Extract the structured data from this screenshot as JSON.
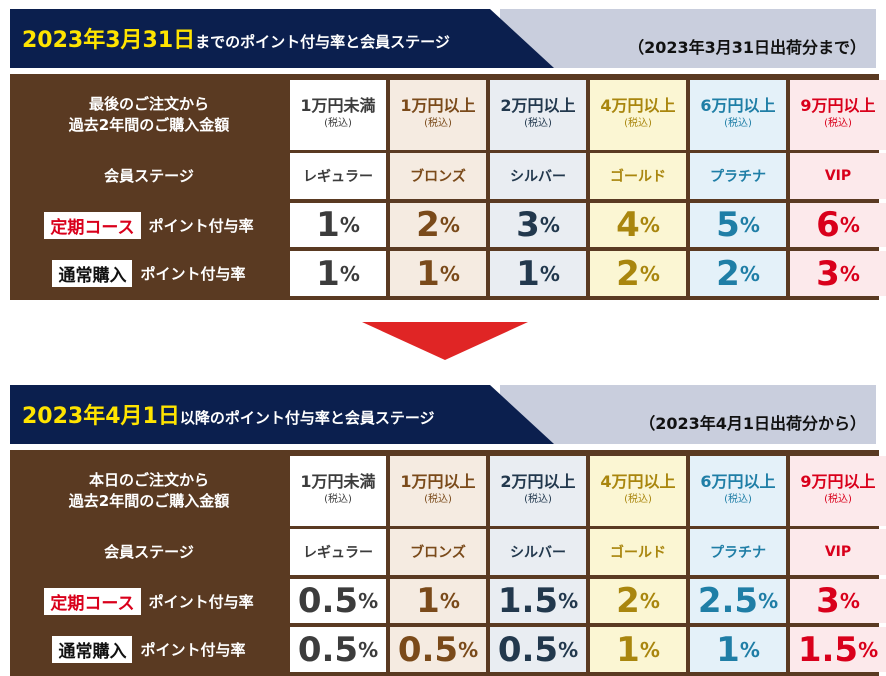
{
  "sections": [
    {
      "title_date": "2023年3月31日",
      "title_rest": "までのポイント付与率と会員ステージ",
      "note": "（2023年3月31日出荷分まで）",
      "amount_label_1": "最後のご注文から",
      "amount_label_2": "過去2年間のご購入金額",
      "stage_label": "会員ステージ",
      "rows": [
        {
          "tag": "定期コース",
          "label": "ポイント付与率",
          "values": [
            "1",
            "2",
            "3",
            "4",
            "5",
            "6"
          ]
        },
        {
          "tag": "通常購入",
          "label": "ポイント付与率",
          "values": [
            "1",
            "1",
            "1",
            "2",
            "2",
            "3"
          ]
        }
      ]
    },
    {
      "title_date": "2023年4月1日",
      "title_rest": "以降のポイント付与率と会員ステージ",
      "note": "（2023年4月1日出荷分から）",
      "amount_label_1": "本日のご注文から",
      "amount_label_2": "過去2年間のご購入金額",
      "stage_label": "会員ステージ",
      "rows": [
        {
          "tag": "定期コース",
          "label": "ポイント付与率",
          "values": [
            "0.5",
            "1",
            "1.5",
            "2",
            "2.5",
            "3"
          ]
        },
        {
          "tag": "通常購入",
          "label": "ポイント付与率",
          "values": [
            "0.5",
            "0.5",
            "0.5",
            "1",
            "1",
            "1.5"
          ]
        }
      ]
    }
  ],
  "tiers": [
    {
      "amount": "1万円未満",
      "tax": "(税込)",
      "stage": "レギュラー"
    },
    {
      "amount": "1万円以上",
      "tax": "(税込)",
      "stage": "ブロンズ"
    },
    {
      "amount": "2万円以上",
      "tax": "(税込)",
      "stage": "シルバー"
    },
    {
      "amount": "4万円以上",
      "tax": "(税込)",
      "stage": "ゴールド"
    },
    {
      "amount": "6万円以上",
      "tax": "(税込)",
      "stage": "プラチナ"
    },
    {
      "amount": "9万円以上",
      "tax": "(税込)",
      "stage": "VIP"
    }
  ],
  "percent_sign": "%",
  "colors": {
    "navy": "#0b1f4e",
    "yellow": "#ffe400",
    "brown": "#5a3a22",
    "arrow": "#e02525",
    "regular": "#3c3c3c",
    "bronze": "#7a4a1a",
    "silver": "#22384d",
    "gold": "#a9860e",
    "platinum": "#1f7ea6",
    "vip": "#d9001b"
  },
  "icons": [
    "down-arrow-icon"
  ]
}
